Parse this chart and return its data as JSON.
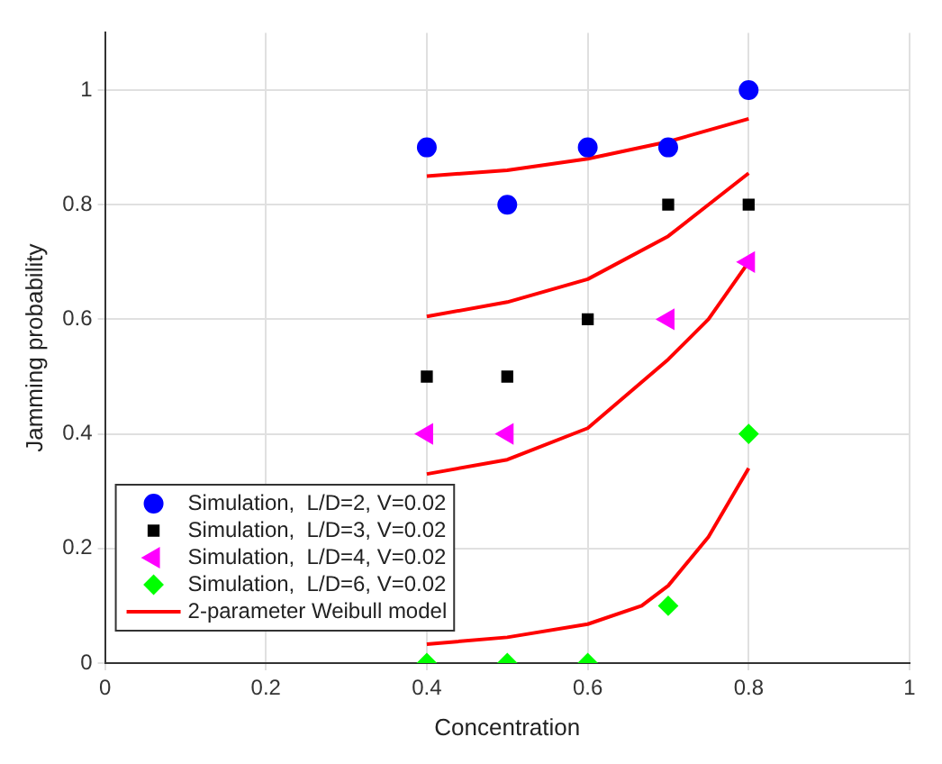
{
  "chart_data": {
    "type": "scatter",
    "xlabel": "Concentration",
    "ylabel": "Jamming probability",
    "xlim": [
      0,
      1
    ],
    "xticks": [
      0,
      0.2,
      0.4,
      0.6,
      0.8,
      1
    ],
    "ylim": [
      0,
      1.1
    ],
    "yticks": [
      0,
      0.2,
      0.4,
      0.6,
      0.8,
      1
    ],
    "grid": true,
    "legend": "bottom left",
    "series": [
      {
        "name": "Simulation,  L/D=2, V=0.02",
        "color": "#0000ff",
        "marker": "circle",
        "x": [
          0.4,
          0.5,
          0.6,
          0.7,
          0.8
        ],
        "values": [
          0.9,
          0.8,
          0.9,
          0.9,
          1.0
        ]
      },
      {
        "name": "Simulation,  L/D=3, V=0.02",
        "color": "#000000",
        "marker": "square",
        "x": [
          0.4,
          0.5,
          0.6,
          0.7,
          0.8
        ],
        "values": [
          0.5,
          0.5,
          0.6,
          0.8,
          0.8
        ]
      },
      {
        "name": "Simulation,  L/D=4, V=0.02",
        "color": "#ff00ff",
        "marker": "triangle",
        "x": [
          0.4,
          0.5,
          0.7,
          0.8
        ],
        "values": [
          0.4,
          0.4,
          0.6,
          0.7
        ]
      },
      {
        "name": "Simulation,  L/D=6, V=0.02",
        "color": "#00ff00",
        "marker": "diamond",
        "x": [
          0.4,
          0.5,
          0.6,
          0.7,
          0.8
        ],
        "values": [
          0.0,
          0.0,
          0.0,
          0.1,
          0.4
        ]
      },
      {
        "name": "2-parameter Weibull model",
        "type": "line",
        "color": "#ff0000",
        "marker": "none",
        "x": [
          0.4,
          0.5,
          0.6,
          0.7,
          0.8
        ],
        "values": [
          0.85,
          0.86,
          0.88,
          0.91,
          0.95
        ]
      },
      {
        "type": "line",
        "color": "#ff0000",
        "marker": "none",
        "x": [
          0.4,
          0.5,
          0.6,
          0.7,
          0.8
        ],
        "values": [
          0.605,
          0.63,
          0.67,
          0.745,
          0.855
        ]
      },
      {
        "type": "line",
        "color": "#ff0000",
        "marker": "none",
        "x": [
          0.4,
          0.5,
          0.6,
          0.7,
          0.75,
          0.8
        ],
        "values": [
          0.33,
          0.355,
          0.41,
          0.53,
          0.6,
          0.7
        ]
      },
      {
        "type": "line",
        "color": "#ff0000",
        "marker": "none",
        "x": [
          0.4,
          0.5,
          0.6,
          0.667,
          0.7,
          0.75,
          0.8
        ],
        "values": [
          0.033,
          0.045,
          0.068,
          0.1,
          0.135,
          0.22,
          0.34
        ]
      }
    ]
  }
}
